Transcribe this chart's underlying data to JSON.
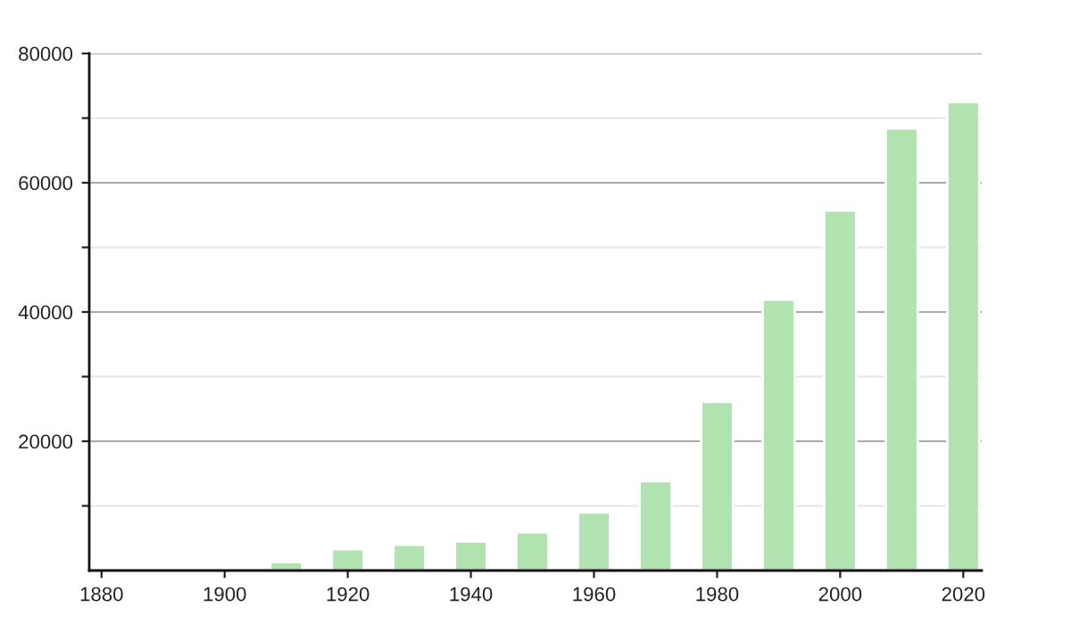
{
  "chart_data": {
    "type": "bar",
    "x": [
      1910,
      1920,
      1930,
      1940,
      1950,
      1960,
      1970,
      1980,
      1990,
      2000,
      2010,
      2020
    ],
    "values": [
      1300,
      3300,
      4000,
      4500,
      5900,
      9000,
      13800,
      26100,
      41900,
      55700,
      68400,
      72500
    ],
    "color": "#b0e3b0",
    "xlim": [
      1878,
      2023
    ],
    "xticks": [
      1880,
      1900,
      1920,
      1940,
      1960,
      1980,
      2000,
      2020
    ],
    "ylim": [
      0,
      80000
    ],
    "yticks": [
      {
        "value": 10000,
        "label": null
      },
      20000,
      {
        "value": 30000,
        "label": null
      },
      40000,
      {
        "value": 50000,
        "label": null
      },
      60000,
      {
        "value": 70000,
        "label": null
      },
      80000
    ],
    "grid": "y"
  }
}
